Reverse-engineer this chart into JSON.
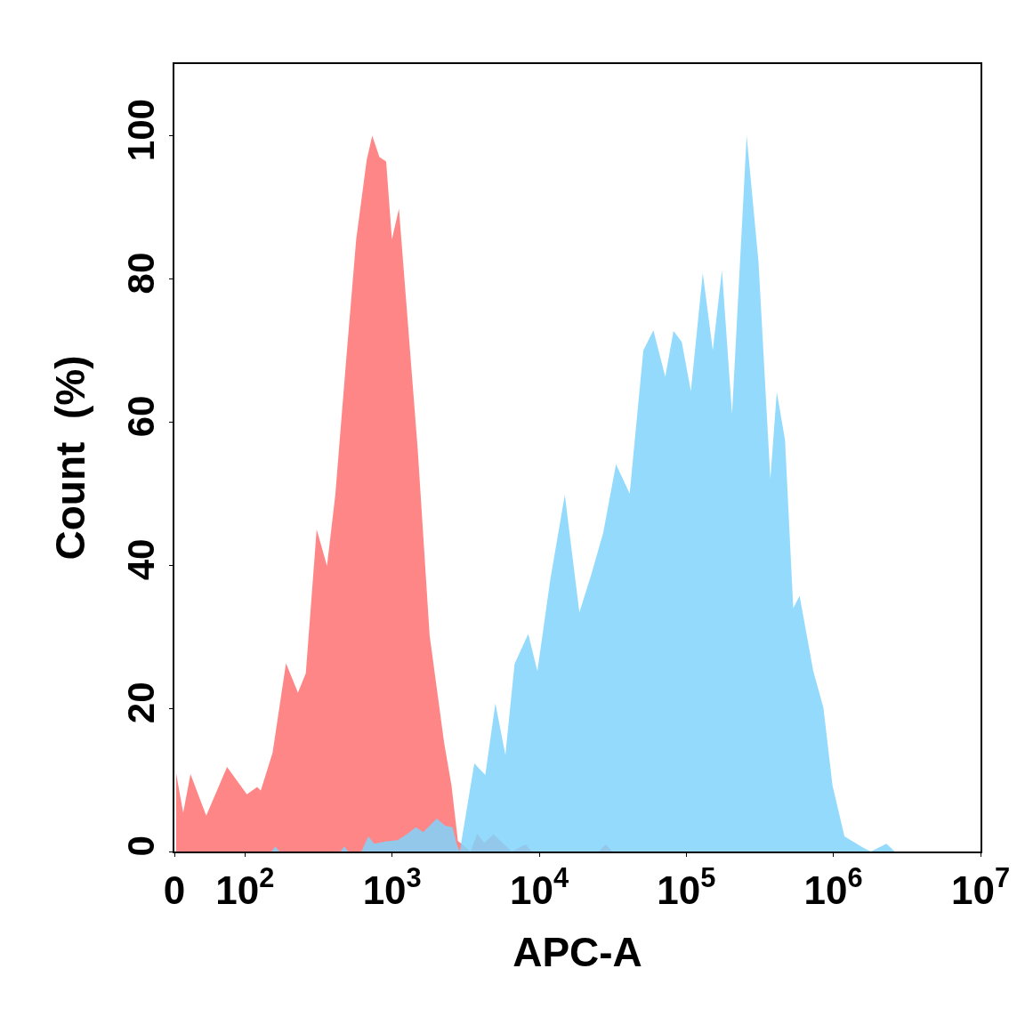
{
  "chart_data": {
    "type": "area",
    "xlabel": "APC-A",
    "ylabel": "Count  (%)",
    "series": [
      {
        "color": "#ff8080",
        "x": [
          34,
          38,
          42.6,
          54.5,
          75.5,
          103,
          121,
          128,
          154,
          190,
          229,
          259,
          307,
          361,
          411,
          490,
          570,
          672,
          733,
          820,
          911,
          997,
          1113,
          1294,
          1493,
          1799,
          2261,
          2535,
          2800,
          3420,
          3780,
          4240,
          4890,
          6510,
          8070,
          8910,
          25300,
          28400,
          31400
        ],
        "values": [
          11,
          5.4,
          10.8,
          5.0,
          11.8,
          8.0,
          9.0,
          8.5,
          13.8,
          26.3,
          22.2,
          24.9,
          45.0,
          39.9,
          49.8,
          69.3,
          85.5,
          96.6,
          100,
          97,
          96.4,
          85.5,
          89.8,
          72.6,
          56.2,
          30.2,
          15.1,
          9.2,
          1.5,
          0,
          2.5,
          1.2,
          2.4,
          0,
          1,
          0,
          0,
          1,
          0
        ]
      },
      {
        "color": "#80d4fb",
        "x": [
          152,
          161,
          171,
          447,
          473,
          502,
          619,
          689,
          756,
          900,
          1090,
          1257,
          1450,
          1626,
          2014,
          2293,
          2572,
          2762,
          2882,
          3622,
          4300,
          5035,
          5890,
          6800,
          8420,
          9720,
          11880,
          14930,
          18760,
          22590,
          27220,
          33270,
          41210,
          51050,
          59730,
          71950,
          81840,
          93130,
          107400,
          129400,
          151400,
          174700,
          204600,
          257200,
          309700,
          372600,
          412100,
          468800,
          533300,
          589100,
          729600,
          854700,
          986300,
          1189000,
          1604000,
          1799000,
          2293000,
          2608000
        ],
        "values": [
          0,
          0.7,
          0,
          0,
          0.7,
          0,
          0,
          2.1,
          1.1,
          1.4,
          1.6,
          2.4,
          3.4,
          2.7,
          4.6,
          3.6,
          3.4,
          0.9,
          0,
          12.3,
          10.7,
          20.7,
          13.5,
          26.2,
          30.4,
          25.2,
          37.9,
          49.8,
          33.4,
          38.7,
          44.5,
          54.1,
          50.0,
          70.0,
          72.8,
          66.3,
          72.7,
          71.2,
          64.3,
          80.8,
          70.0,
          81.2,
          61.1,
          100,
          82.3,
          52.0,
          64.2,
          57.5,
          34.0,
          35.7,
          25.2,
          20.1,
          9.2,
          2.1,
          0.5,
          0,
          1.1,
          0
        ]
      }
    ],
    "xlim": [
      0,
      10000000
    ],
    "log": "x",
    "xticks": [
      0,
      {
        "value": 100,
        "label": "10$^{2}$"
      },
      {
        "value": 1000,
        "label": "10$^{3}$"
      },
      {
        "value": 10000,
        "label": "10$^{4}$"
      },
      {
        "value": 100000,
        "label": "10$^{5}$"
      },
      {
        "value": 1000000,
        "label": "10$^{6}$"
      },
      {
        "value": 10000000,
        "label": "10$^{7}$"
      }
    ],
    "ylim": [
      0,
      110
    ],
    "yticks": [
      0,
      20,
      40,
      60,
      80,
      100
    ],
    "grid": false
  }
}
